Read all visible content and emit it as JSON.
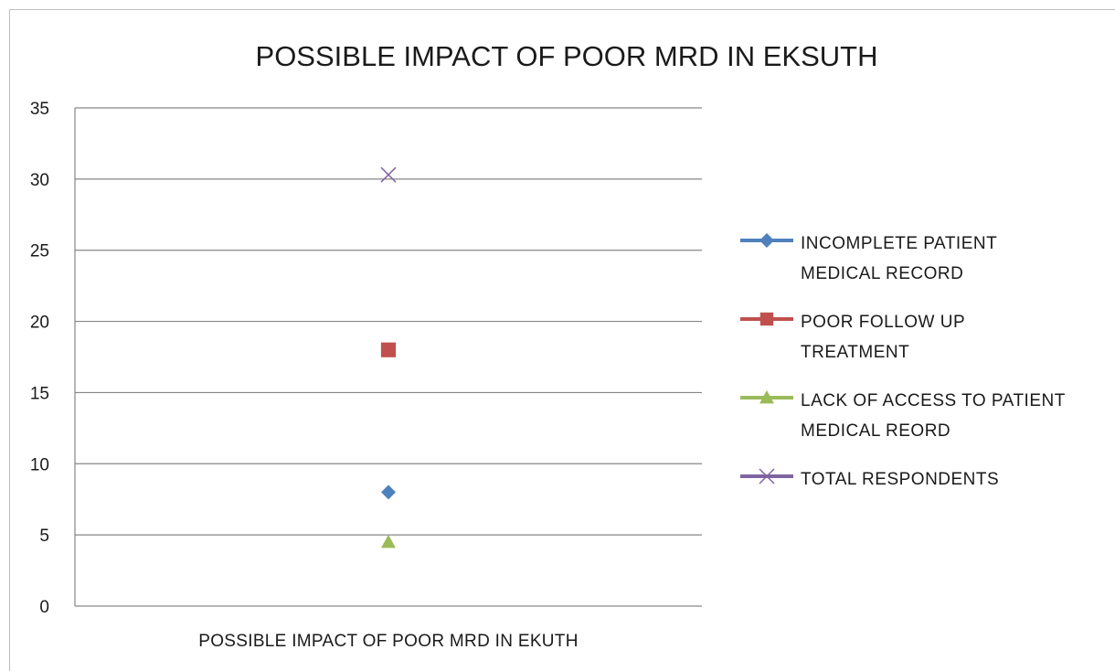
{
  "chart_data": {
    "type": "scatter",
    "title": "POSSIBLE IMPACT OF POOR MRD IN EKSUTH",
    "xlabel": "",
    "ylabel": "",
    "categories": [
      "POSSIBLE IMPACT OF POOR MRD IN EKUTH"
    ],
    "ylim": [
      0,
      35
    ],
    "yticks": [
      0,
      5,
      10,
      15,
      20,
      25,
      30,
      35
    ],
    "grid": true,
    "legend_position": "right",
    "series": [
      {
        "name_lines": [
          "INCOMPLETE PATIENT",
          "MEDICAL RECORD"
        ],
        "values": [
          8
        ],
        "color": "#4f81bd",
        "marker": "diamond"
      },
      {
        "name_lines": [
          "POOR FOLLOW UP",
          "TREATMENT"
        ],
        "values": [
          18
        ],
        "color": "#c0504d",
        "marker": "square"
      },
      {
        "name_lines": [
          "LACK OF ACCESS TO PATIENT",
          "MEDICAL REORD"
        ],
        "values": [
          4.5
        ],
        "color": "#9bbb59",
        "marker": "triangle"
      },
      {
        "name_lines": [
          "TOTAL RESPONDENTS"
        ],
        "values": [
          30.3
        ],
        "color": "#8064a2",
        "marker": "x"
      }
    ]
  }
}
